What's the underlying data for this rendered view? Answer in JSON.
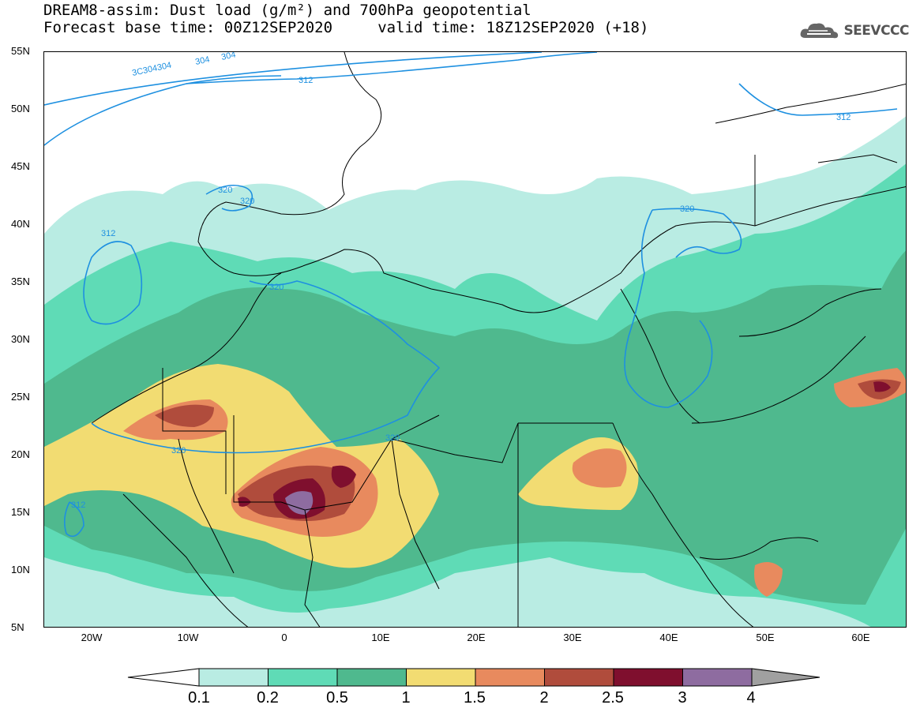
{
  "title": {
    "line1": "DREAM8-assim: Dust load (g/m²) and 700hPa geopotential",
    "line2": "Forecast base time: 00Z12SEP2020     valid time: 18Z12SEP2020 (+18)"
  },
  "logo": {
    "text": "SEEVCCC",
    "icon": "cloud-icon"
  },
  "axes": {
    "y_ticks": [
      "55N",
      "50N",
      "45N",
      "40N",
      "35N",
      "30N",
      "25N",
      "20N",
      "15N",
      "10N",
      "5N"
    ],
    "x_ticks": [
      "20W",
      "10W",
      "0",
      "10E",
      "20E",
      "30E",
      "40E",
      "50E",
      "60E"
    ]
  },
  "contours": {
    "labels": [
      "3C304304",
      "304",
      "304",
      "312",
      "320",
      "320",
      "312",
      "320",
      "320",
      "320",
      "320",
      "312",
      "312"
    ]
  },
  "legend": {
    "labels": [
      "0.1",
      "0.2",
      "0.5",
      "1",
      "1.5",
      "2",
      "2.5",
      "3",
      "4"
    ],
    "colors": [
      "#ffffff",
      "#b9ece3",
      "#5fdbb6",
      "#4fb98e",
      "#f2dc72",
      "#e88a5e",
      "#b04c3c",
      "#7f0f2e",
      "#8e6ca0",
      "#a0a0a0"
    ]
  }
}
